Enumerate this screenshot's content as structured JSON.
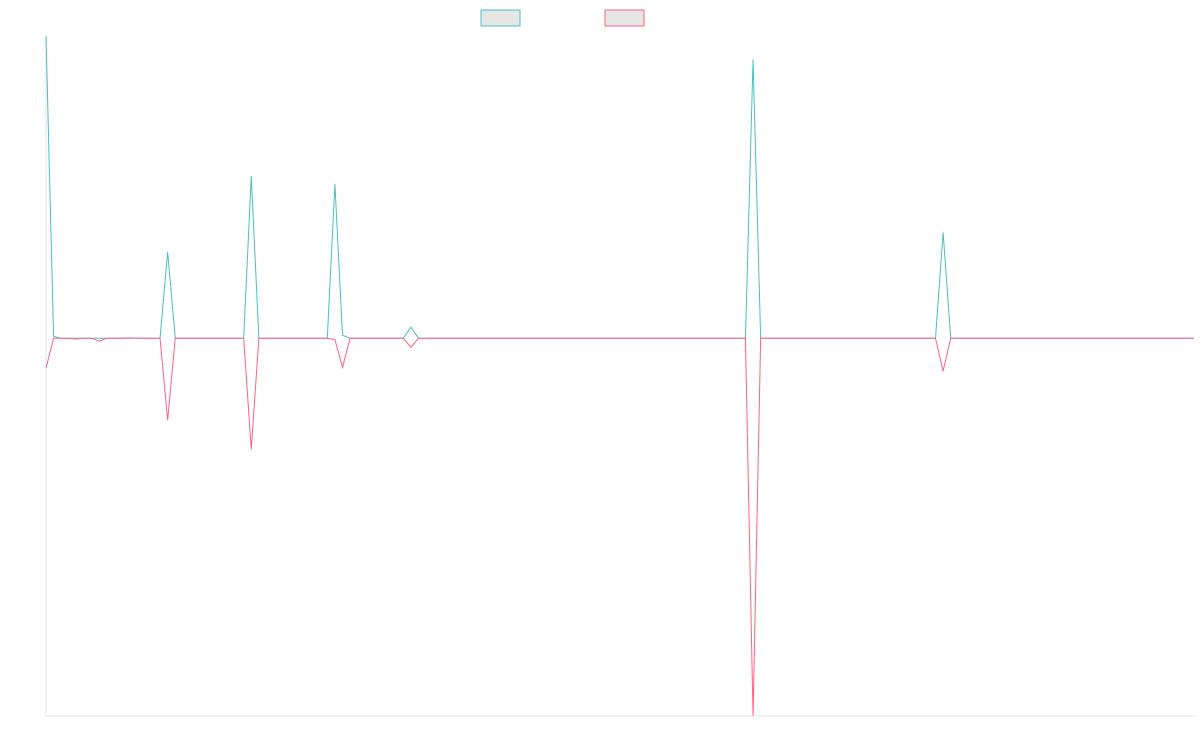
{
  "chart_data": {
    "type": "line",
    "ylim": [
      -100,
      80
    ],
    "series": [
      {
        "color": "#4bc0c0",
        "values": [
          80,
          0.5,
          0,
          0,
          0,
          0,
          0,
          0,
          0,
          0,
          0,
          0,
          0,
          0,
          0,
          0,
          22.8,
          0,
          0,
          0,
          0,
          0,
          0,
          0,
          0,
          0,
          0,
          42.9,
          0,
          0,
          0,
          0,
          0,
          0,
          0,
          0,
          0,
          0,
          40.8,
          0.8,
          0,
          0,
          0,
          0,
          0,
          0,
          0,
          0,
          2.9,
          0,
          0,
          0,
          0,
          0,
          0,
          0,
          0,
          0,
          0,
          0,
          0,
          0,
          0,
          0,
          0,
          0,
          0,
          0,
          0,
          0,
          0,
          0,
          0,
          0,
          0,
          0,
          0,
          0,
          0,
          0,
          0,
          0,
          0,
          0,
          0,
          0,
          0,
          0,
          0,
          0,
          0,
          0,
          0,
          73.8,
          0,
          0,
          0,
          0,
          0,
          0,
          0,
          0,
          0,
          0,
          0,
          0,
          0,
          0,
          0,
          0,
          0,
          0,
          0,
          0,
          0,
          0,
          0,
          0,
          28,
          0,
          0,
          0,
          0,
          0,
          0,
          0,
          0,
          0,
          0,
          0,
          0,
          0,
          0,
          0,
          0,
          0,
          0,
          0,
          0,
          0,
          0,
          0,
          0,
          0,
          0,
          0,
          0,
          0,
          0,
          0,
          0,
          0
        ]
      },
      {
        "color": "#ff6384",
        "values": [
          -7.9,
          0,
          0,
          0,
          -0.2,
          0,
          0,
          -0.8,
          0,
          0,
          0,
          0.1,
          0,
          0,
          0,
          0,
          -21.7,
          0,
          0,
          0,
          0,
          0,
          0,
          0,
          0,
          0,
          0,
          -29.4,
          0,
          0,
          0,
          0,
          0,
          0,
          0,
          0,
          0,
          0,
          -0.4,
          -7.7,
          0,
          0,
          0,
          0,
          0,
          0,
          0,
          0,
          -2.4,
          0,
          0,
          0,
          0,
          0,
          0,
          0,
          0,
          0,
          0,
          0,
          0,
          0,
          0,
          0,
          0,
          0,
          0,
          0,
          0,
          0,
          0,
          0,
          0,
          0,
          0,
          0,
          0,
          0,
          0,
          0,
          0,
          0,
          0,
          0,
          0,
          0,
          0,
          0,
          0,
          0,
          0,
          0,
          0,
          -100,
          0,
          0,
          0,
          0,
          0,
          0,
          0,
          0,
          0,
          0,
          0,
          0,
          0,
          0,
          0,
          0,
          0,
          0,
          0,
          0,
          0,
          0,
          0,
          0,
          -8.7,
          0,
          0,
          0,
          0,
          0,
          0,
          0,
          0,
          0,
          0,
          0,
          0,
          0,
          0,
          0,
          0,
          0,
          0,
          0,
          0,
          0,
          0,
          0,
          0,
          0,
          0,
          0,
          0,
          0,
          0,
          0,
          0,
          0
        ]
      }
    ]
  }
}
